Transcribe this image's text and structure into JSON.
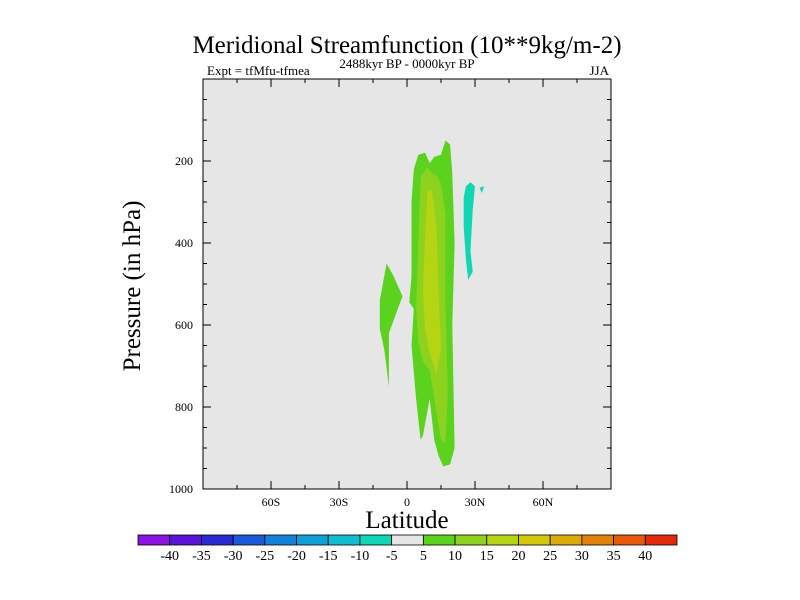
{
  "chart_data": {
    "type": "contour",
    "title": "Meridional Streamfunction (10**9kg/m-2)",
    "subtitle_left": "Expt = tfMfu-tfmea",
    "subtitle_center": "2488kyr BP - 0000kyr BP",
    "subtitle_right": "JJA",
    "xlabel": "Latitude",
    "ylabel": "Pressure (in hPa)",
    "xlim": [
      -90,
      90
    ],
    "ylim": [
      1000,
      0
    ],
    "xticks": [
      {
        "value": -60,
        "label": "60S"
      },
      {
        "value": -30,
        "label": "30S"
      },
      {
        "value": 0,
        "label": "0"
      },
      {
        "value": 30,
        "label": "30N"
      },
      {
        "value": 60,
        "label": "60N"
      }
    ],
    "yticks": [
      {
        "value": 200,
        "label": "200"
      },
      {
        "value": 400,
        "label": "400"
      },
      {
        "value": 600,
        "label": "600"
      },
      {
        "value": 800,
        "label": "800"
      },
      {
        "value": 1000,
        "label": "1000"
      }
    ],
    "background_color": "#e6e6e6",
    "colorbar": {
      "labels": [
        "-40",
        "-35",
        "-30",
        "-25",
        "-20",
        "-15",
        "-10",
        "-5",
        "5",
        "10",
        "15",
        "20",
        "25",
        "30",
        "35",
        "40"
      ],
      "colors": [
        "#8c14e0",
        "#5a14d6",
        "#2a2ad2",
        "#1a5ad8",
        "#1282d8",
        "#10a0d6",
        "#10bcd0",
        "#10d6b4",
        "#e6e6e6",
        "#5ad21e",
        "#8cd21e",
        "#b4d414",
        "#d2c80a",
        "#dcaa0a",
        "#e0820a",
        "#e65a0a",
        "#e02a0a"
      ]
    },
    "regions": [
      {
        "name": "positive-5-10-main",
        "level": "5 to 10",
        "color": "#5ad21e",
        "points": [
          [
            1,
            545
          ],
          [
            2,
            480
          ],
          [
            2,
            300
          ],
          [
            3,
            220
          ],
          [
            5,
            185
          ],
          [
            8,
            180
          ],
          [
            10,
            205
          ],
          [
            12,
            190
          ],
          [
            15,
            185
          ],
          [
            17,
            150
          ],
          [
            19,
            160
          ],
          [
            20,
            230
          ],
          [
            21,
            400
          ],
          [
            20,
            600
          ],
          [
            21,
            900
          ],
          [
            19,
            940
          ],
          [
            16,
            945
          ],
          [
            14,
            920
          ],
          [
            12,
            880
          ],
          [
            10,
            780
          ],
          [
            7,
            870
          ],
          [
            6,
            880
          ],
          [
            4,
            780
          ],
          [
            2,
            650
          ],
          [
            3,
            560
          ]
        ]
      },
      {
        "name": "positive-5-10-left",
        "level": "5 to 10",
        "color": "#5ad21e",
        "points": [
          [
            -12,
            540
          ],
          [
            -9,
            450
          ],
          [
            -6,
            480
          ],
          [
            -2,
            530
          ],
          [
            -4,
            560
          ],
          [
            -8,
            620
          ],
          [
            -8,
            750
          ],
          [
            -10,
            660
          ],
          [
            -12,
            610
          ]
        ]
      },
      {
        "name": "positive-10-15",
        "level": "10 to 15",
        "color": "#8cd21e",
        "points": [
          [
            4,
            560
          ],
          [
            5,
            400
          ],
          [
            6,
            240
          ],
          [
            9,
            215
          ],
          [
            11,
            230
          ],
          [
            13,
            235
          ],
          [
            15,
            255
          ],
          [
            17,
            330
          ],
          [
            17,
            560
          ],
          [
            18,
            760
          ],
          [
            17,
            890
          ],
          [
            15,
            880
          ],
          [
            12,
            780
          ],
          [
            10,
            710
          ],
          [
            7,
            690
          ],
          [
            5,
            640
          ]
        ]
      },
      {
        "name": "positive-15-20",
        "level": "15 to 20",
        "color": "#b4d414",
        "points": [
          [
            7,
            520
          ],
          [
            8,
            380
          ],
          [
            9,
            275
          ],
          [
            11,
            270
          ],
          [
            13,
            360
          ],
          [
            14,
            520
          ],
          [
            15,
            660
          ],
          [
            13,
            720
          ],
          [
            10,
            670
          ],
          [
            8,
            610
          ]
        ]
      },
      {
        "name": "negative-5-10-upper",
        "level": "-10 to -5",
        "color": "#10d6b4",
        "points": [
          [
            26,
            262
          ],
          [
            28,
            252
          ],
          [
            30,
            262
          ],
          [
            29,
            320
          ],
          [
            28,
            420
          ],
          [
            29,
            470
          ],
          [
            27,
            490
          ],
          [
            26,
            440
          ],
          [
            25,
            360
          ],
          [
            25,
            290
          ]
        ]
      },
      {
        "name": "negative-5-10-speck",
        "level": "-10 to -5",
        "color": "#10d6b4",
        "points": [
          [
            32,
            265
          ],
          [
            34,
            262
          ],
          [
            33,
            278
          ]
        ]
      }
    ]
  }
}
